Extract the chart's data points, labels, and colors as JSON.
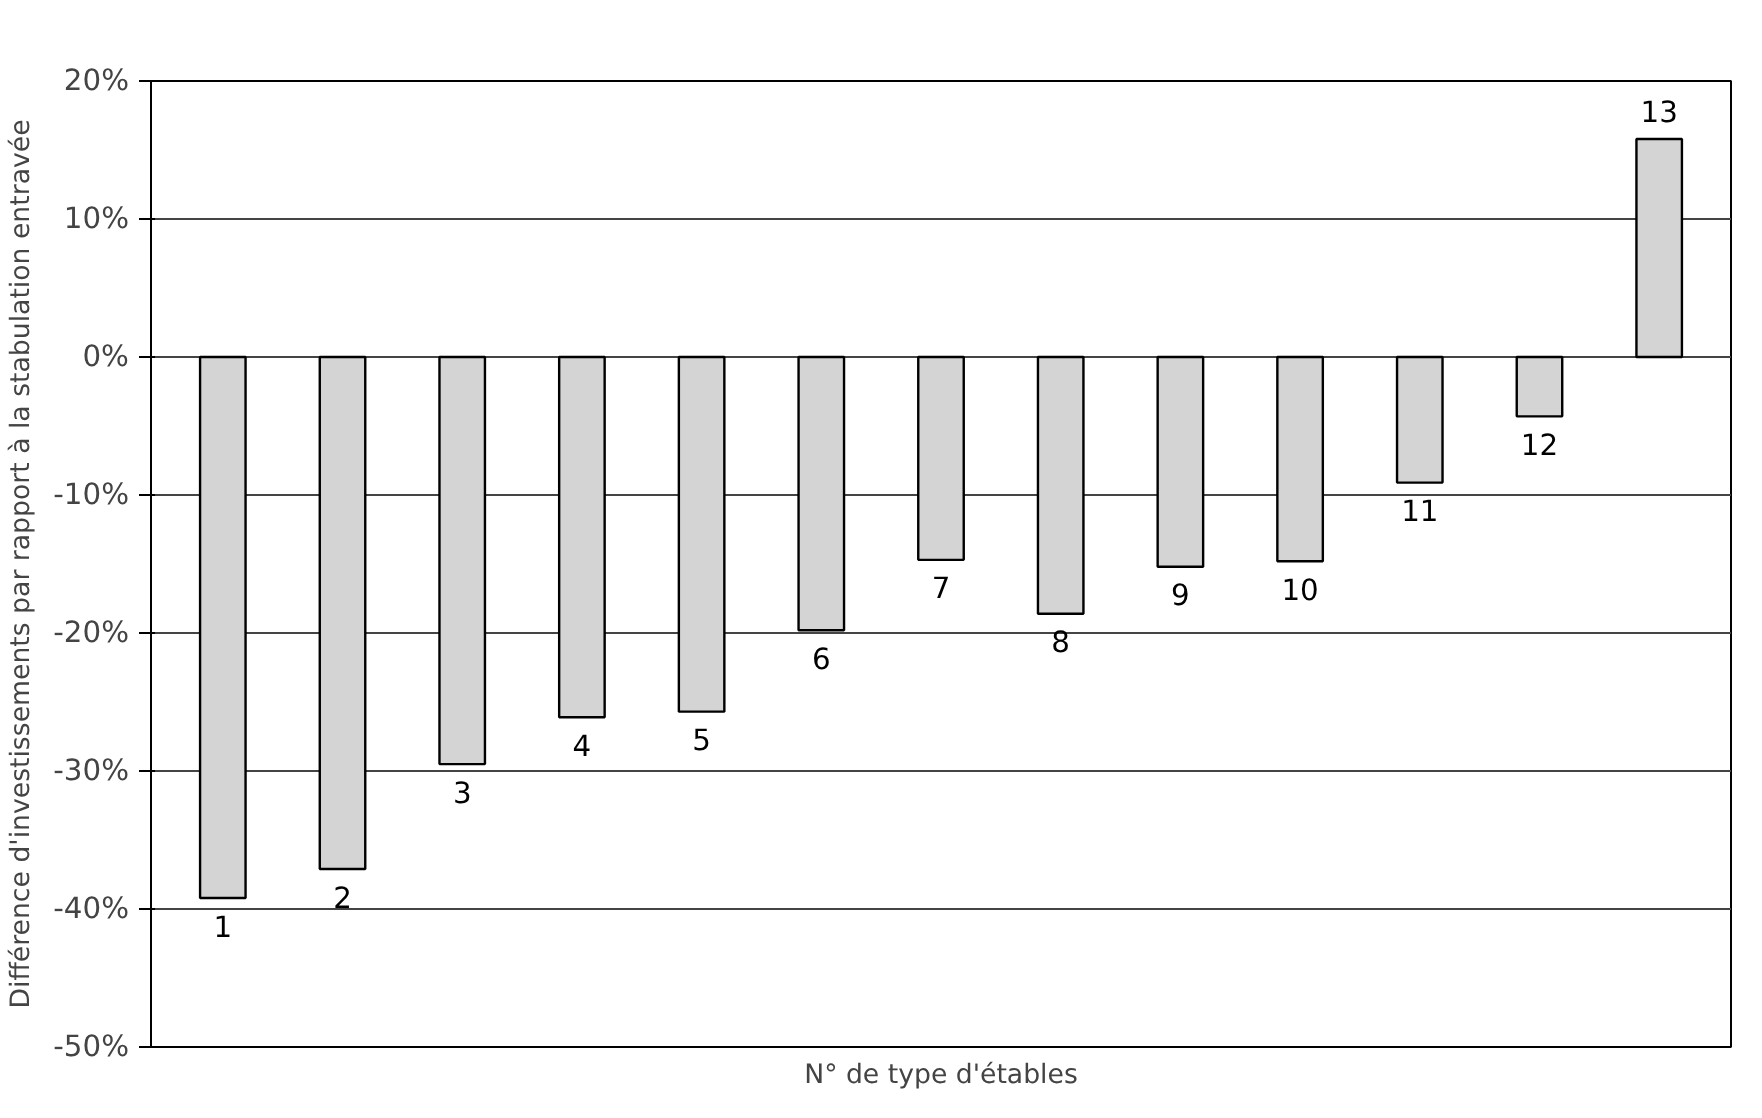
{
  "chart_data": {
    "type": "bar",
    "xlabel": "N° de type d'étables",
    "ylabel": "Différence d'investissements par rapport à la stabulation entravée",
    "categories": [
      "1",
      "2",
      "3",
      "4",
      "5",
      "6",
      "7",
      "8",
      "9",
      "10",
      "11",
      "12",
      "13"
    ],
    "values": [
      -39.2,
      -37.1,
      -29.5,
      -26.1,
      -25.7,
      -19.8,
      -14.7,
      -18.6,
      -15.2,
      -14.8,
      -9.1,
      -4.3,
      15.8
    ],
    "color": "#d4d4d4",
    "ylim": [
      -50,
      20
    ],
    "yticks": [
      {
        "value": -50,
        "label": "-50%"
      },
      {
        "value": -40,
        "label": "-40%"
      },
      {
        "value": -30,
        "label": "-30%"
      },
      {
        "value": -20,
        "label": "-20%"
      },
      {
        "value": -10,
        "label": "-10%"
      },
      {
        "value": 0,
        "label": "0%"
      },
      {
        "value": 10,
        "label": "10%"
      },
      {
        "value": 20,
        "label": "20%"
      }
    ],
    "grid": "y"
  }
}
